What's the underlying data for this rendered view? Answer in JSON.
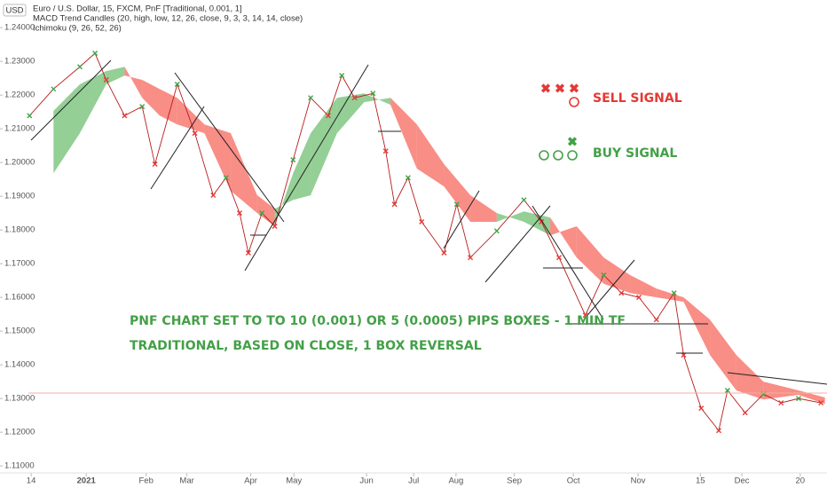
{
  "header": {
    "badge": "USD",
    "title": "Euro / U.S. Dollar, 15, FXCM, PnF [Traditional, 0.001, 1]",
    "indicators": [
      "MACD Trend Candles (20, high, low, 12, 26, close, 9, 3, 3, 14, 14, close)",
      "Ichimoku (9, 26, 52, 26)"
    ]
  },
  "chart_data": {
    "type": "pnf",
    "annotations": [
      "SELL SIGNAL",
      "BUY SIGNAL",
      "PNF CHART SET TO TO 10 (0.001) OR 5 (0.0005) PIPS BOXES - 1 MIN TF",
      "TRADITIONAL, BASED ON CLOSE, 1 BOX REVERSAL"
    ],
    "xlim": [
      0,
      103.5
    ],
    "ylim": [
      1.1074,
      1.2482
    ],
    "xticks": [
      {
        "value": 3.9,
        "label": "14"
      },
      {
        "value": 10.8,
        "label": "2021"
      },
      {
        "value": 18.3,
        "label": "Feb"
      },
      {
        "value": 23.4,
        "label": "Mar"
      },
      {
        "value": 31.4,
        "label": "Apr"
      },
      {
        "value": 36.8,
        "label": "May"
      },
      {
        "value": 45.9,
        "label": "Jun"
      },
      {
        "value": 51.8,
        "label": "Jul"
      },
      {
        "value": 57.1,
        "label": "Aug"
      },
      {
        "value": 64.4,
        "label": "Sep"
      },
      {
        "value": 71.8,
        "label": "Oct"
      },
      {
        "value": 79.9,
        "label": "Nov"
      },
      {
        "value": 87.7,
        "label": "15"
      },
      {
        "value": 92.9,
        "label": "Dec"
      },
      {
        "value": 100.2,
        "label": "20"
      }
    ],
    "yticks": [
      {
        "value": 1.11,
        "label": "1.11000"
      },
      {
        "value": 1.12,
        "label": "1.12000"
      },
      {
        "value": 1.13,
        "label": "1.13000"
      },
      {
        "value": 1.14,
        "label": "1.14000"
      },
      {
        "value": 1.15,
        "label": "1.15000"
      },
      {
        "value": 1.16,
        "label": "1.16000"
      },
      {
        "value": 1.17,
        "label": "1.17000"
      },
      {
        "value": 1.18,
        "label": "1.18000"
      },
      {
        "value": 1.19,
        "label": "1.19000"
      },
      {
        "value": 1.2,
        "label": "1.20000"
      },
      {
        "value": 1.21,
        "label": "1.21000"
      },
      {
        "value": 1.22,
        "label": "1.22000"
      },
      {
        "value": 1.23,
        "label": "1.23000"
      },
      {
        "value": 1.24,
        "label": "1.24000"
      }
    ],
    "price": {
      "up_color": "#43a047",
      "down_color": "#e53935",
      "line_color": "#b71c1c",
      "x": [
        3.7,
        6.7,
        10,
        11.9,
        13.3,
        15.6,
        17.8,
        19.4,
        22.2,
        24.4,
        26.7,
        28.3,
        30,
        31.1,
        32.8,
        34.4,
        36.7,
        38.9,
        41.1,
        42.8,
        44.4,
        46.7,
        48.3,
        49.4,
        51.1,
        52.8,
        55.6,
        57.2,
        58.9,
        62.2,
        65.6,
        67.8,
        70,
        73.3,
        75.6,
        77.8,
        80,
        82.2,
        84.4,
        85.6,
        87.8,
        90,
        91.1,
        93.3,
        95.6,
        97.8,
        100,
        102.8
      ],
      "values": [
        1.2139,
        1.2218,
        1.2284,
        1.2324,
        1.2245,
        1.2139,
        1.2166,
        1.1995,
        1.2232,
        1.2087,
        1.1903,
        1.1955,
        1.185,
        1.1732,
        1.185,
        1.1811,
        1.2008,
        1.2192,
        1.2139,
        1.2258,
        1.2192,
        1.2205,
        1.2034,
        1.1876,
        1.1955,
        1.1824,
        1.1732,
        1.1876,
        1.1718,
        1.1797,
        1.1889,
        1.1824,
        1.1718,
        1.1547,
        1.1666,
        1.1613,
        1.16,
        1.1534,
        1.1613,
        1.1429,
        1.1271,
        1.1205,
        1.1324,
        1.1258,
        1.1313,
        1.1287,
        1.13,
        1.1287
      ]
    },
    "cloud": {
      "up_color": "rgba(76,175,80,0.6)",
      "down_color": "rgba(244,67,54,0.6)",
      "x": [
        6.7,
        10,
        13.3,
        15.6,
        17.8,
        20,
        22.2,
        25.6,
        28.9,
        32.2,
        34.4,
        36.7,
        38.9,
        42.2,
        45.6,
        48.9,
        52.2,
        55.6,
        58.9,
        62.2,
        65.6,
        68.9,
        72.2,
        75.6,
        78.9,
        82.2,
        85.6,
        88.9,
        92.2,
        95.6,
        100,
        103.3
      ],
      "span_a": [
        1.2153,
        1.2232,
        1.2271,
        1.2284,
        1.2192,
        1.2139,
        1.2113,
        1.2087,
        1.1916,
        1.185,
        1.1811,
        1.1968,
        1.2087,
        1.2192,
        1.2205,
        1.2171,
        1.1982,
        1.1929,
        1.1824,
        1.1824,
        1.1855,
        1.1837,
        1.1718,
        1.164,
        1.1613,
        1.16,
        1.1587,
        1.1429,
        1.1324,
        1.1297,
        1.1311,
        1.1284
      ],
      "span_b": [
        1.1968,
        1.2087,
        1.2232,
        1.2258,
        1.2245,
        1.2218,
        1.2192,
        1.2113,
        1.2087,
        1.1903,
        1.1863,
        1.1889,
        1.1903,
        1.2087,
        1.2179,
        1.2192,
        1.2113,
        1.1995,
        1.1903,
        1.185,
        1.1824,
        1.1784,
        1.1811,
        1.1718,
        1.1666,
        1.1626,
        1.16,
        1.1534,
        1.1429,
        1.135,
        1.1324,
        1.1303
      ]
    }
  }
}
